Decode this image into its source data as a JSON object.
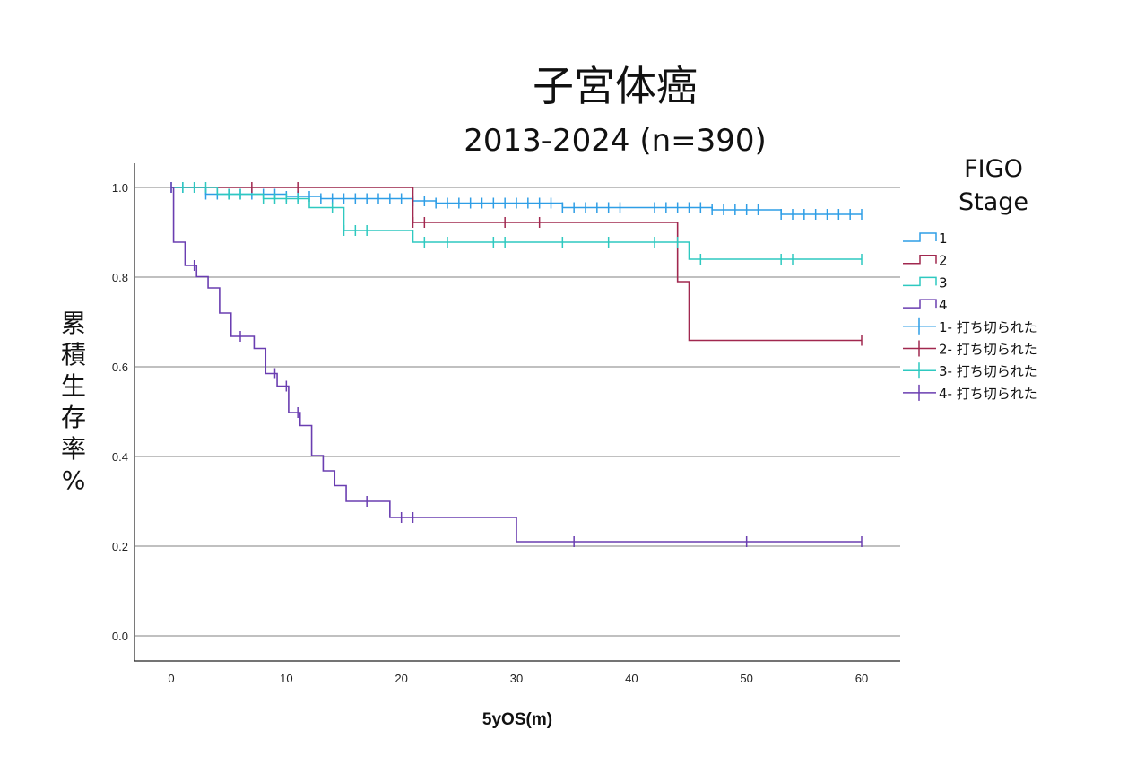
{
  "chart_data": {
    "type": "line",
    "title": "子宮体癌",
    "subtitle": "2013-2024 (n=390)",
    "xlabel": "5yOS(m)",
    "ylabel": "累積生存率%",
    "xlim": [
      0,
      60
    ],
    "ylim": [
      0.0,
      1.0
    ],
    "x_ticks": [
      "0",
      "10",
      "20",
      "30",
      "40",
      "50",
      "60"
    ],
    "y_ticks": [
      "0.0",
      "0.2",
      "0.4",
      "0.6",
      "0.8",
      "1.0"
    ],
    "grid": "horizontal",
    "legend_title": "FIGO Stage",
    "legend_position": "right",
    "series": [
      {
        "name": "1",
        "color": "#2e9ee6",
        "steps": [
          [
            0,
            1.0
          ],
          [
            3,
            0.985
          ],
          [
            10,
            0.98
          ],
          [
            13,
            0.975
          ],
          [
            21,
            0.97
          ],
          [
            23,
            0.965
          ],
          [
            34,
            0.955
          ],
          [
            42,
            0.955
          ],
          [
            47,
            0.95
          ],
          [
            53,
            0.94
          ],
          [
            60,
            0.94
          ]
        ],
        "censored": [
          0,
          1,
          2,
          3,
          4,
          5,
          6,
          7,
          8,
          9,
          10,
          11,
          12,
          13,
          14,
          15,
          16,
          17,
          18,
          19,
          20,
          21,
          22,
          23,
          24,
          25,
          26,
          27,
          28,
          29,
          30,
          31,
          32,
          33,
          34,
          35,
          36,
          37,
          38,
          39,
          42,
          43,
          44,
          45,
          46,
          47,
          48,
          49,
          50,
          51,
          53,
          54,
          55,
          56,
          57,
          58,
          59,
          60
        ]
      },
      {
        "name": "2",
        "color": "#a1284f",
        "steps": [
          [
            0,
            1.0
          ],
          [
            21,
            0.922
          ],
          [
            44,
            0.79
          ],
          [
            45,
            0.659
          ],
          [
            60,
            0.659
          ]
        ],
        "censored": [
          7,
          11,
          21,
          22,
          29,
          32,
          60
        ]
      },
      {
        "name": "3",
        "color": "#2ec9c0",
        "steps": [
          [
            0,
            1.0
          ],
          [
            4,
            0.985
          ],
          [
            8,
            0.975
          ],
          [
            12,
            0.955
          ],
          [
            15,
            0.904
          ],
          [
            21,
            0.878
          ],
          [
            45,
            0.84
          ],
          [
            60,
            0.84
          ]
        ],
        "censored": [
          1,
          2,
          3,
          5,
          6,
          8,
          9,
          10,
          11,
          14,
          15,
          16,
          17,
          22,
          24,
          28,
          29,
          34,
          38,
          42,
          44,
          46,
          53,
          54,
          60
        ]
      },
      {
        "name": "4",
        "color": "#6a3eb1",
        "steps": [
          [
            0,
            1.0
          ],
          [
            0.2,
            0.878
          ],
          [
            1.2,
            0.826
          ],
          [
            2.2,
            0.801
          ],
          [
            3.2,
            0.776
          ],
          [
            4.2,
            0.72
          ],
          [
            5.2,
            0.668
          ],
          [
            7.2,
            0.641
          ],
          [
            8.2,
            0.585
          ],
          [
            9.2,
            0.557
          ],
          [
            10.2,
            0.498
          ],
          [
            11.2,
            0.469
          ],
          [
            12.2,
            0.402
          ],
          [
            13.2,
            0.368
          ],
          [
            14.2,
            0.335
          ],
          [
            15.2,
            0.3
          ],
          [
            19,
            0.264
          ],
          [
            30,
            0.21
          ],
          [
            60,
            0.21
          ]
        ],
        "censored": [
          0,
          2,
          6,
          9,
          10,
          11,
          17,
          20,
          21,
          35,
          50,
          60
        ]
      }
    ],
    "legend_entries": [
      {
        "label": "1",
        "kind": "step",
        "color": "#2e9ee6"
      },
      {
        "label": "2",
        "kind": "step",
        "color": "#a1284f"
      },
      {
        "label": "3",
        "kind": "step",
        "color": "#2ec9c0"
      },
      {
        "label": "4",
        "kind": "step",
        "color": "#6a3eb1"
      },
      {
        "label": "1- 打ち切られた",
        "kind": "censor",
        "color": "#2e9ee6"
      },
      {
        "label": "2- 打ち切られた",
        "kind": "censor",
        "color": "#a1284f"
      },
      {
        "label": "3- 打ち切られた",
        "kind": "censor",
        "color": "#2ec9c0"
      },
      {
        "label": "4- 打ち切られた",
        "kind": "censor",
        "color": "#6a3eb1"
      }
    ]
  }
}
